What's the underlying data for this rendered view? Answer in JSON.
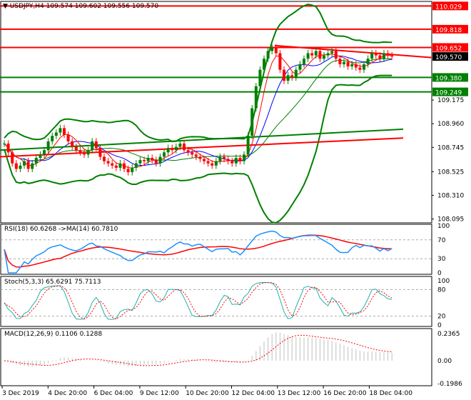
{
  "chart_data": {
    "type": "candlestick",
    "symbol": "USDJPY,H4",
    "ohlc_header": "109.574 109.602 109.556 109.570",
    "current_price": "109.570",
    "price_ticks": [
      "109.175",
      "108.960",
      "108.745",
      "108.525",
      "108.310",
      "108.095"
    ],
    "ylim": [
      108.06,
      110.07
    ],
    "time_labels": [
      "3 Dec 2019",
      "4 Dec 20:00",
      "6 Dec 04:00",
      "9 Dec 12:00",
      "10 Dec 20:00",
      "12 Dec 04:00",
      "13 Dec 12:00",
      "16 Dec 20:00",
      "18 Dec 04:00"
    ],
    "closes": [
      108.78,
      108.7,
      108.6,
      108.55,
      108.58,
      108.62,
      108.55,
      108.6,
      108.65,
      108.68,
      108.72,
      108.8,
      108.85,
      108.88,
      108.92,
      108.86,
      108.8,
      108.75,
      108.72,
      108.7,
      108.68,
      108.72,
      108.8,
      108.74,
      108.66,
      108.62,
      108.6,
      108.58,
      108.56,
      108.6,
      108.55,
      108.52,
      108.56,
      108.6,
      108.63,
      108.62,
      108.65,
      108.63,
      108.6,
      108.66,
      108.7,
      108.74,
      108.72,
      108.75,
      108.78,
      108.72,
      108.7,
      108.68,
      108.66,
      108.64,
      108.62,
      108.6,
      108.58,
      108.62,
      108.66,
      108.64,
      108.62,
      108.6,
      108.65,
      108.62,
      108.68,
      108.85,
      109.1,
      109.3,
      109.45,
      109.55,
      109.62,
      109.65,
      109.6,
      109.45,
      109.35,
      109.4,
      109.38,
      109.45,
      109.5,
      109.55,
      109.6,
      109.58,
      109.62,
      109.55,
      109.58,
      109.6,
      109.62,
      109.55,
      109.5,
      109.52,
      109.48,
      109.5,
      109.47,
      109.45,
      109.5,
      109.55,
      109.6,
      109.58,
      109.55,
      109.6,
      109.58,
      109.57
    ],
    "horizontal_levels": [
      {
        "price": "110.029",
        "color": "#ff0000"
      },
      {
        "price": "109.818",
        "color": "#ff0000"
      },
      {
        "price": "109.652",
        "color": "#ff0000"
      },
      {
        "price": "109.380",
        "color": "#008000"
      },
      {
        "price": "109.249",
        "color": "#008000"
      }
    ],
    "colors": {
      "bull": "#008000",
      "bear": "#ff0000",
      "bollinger": "#008000",
      "ma_fast": "#ff0000",
      "ma_slow": "#0000ff",
      "rsi": "#1e90ff",
      "stoch_main": "#20b2aa",
      "signal": "#ff0000",
      "macd_hist": "#c0c0c0"
    },
    "rsi": {
      "label": "RSI(18) 60.6268  ->MA(14) 60.7810",
      "ticks": [
        "100",
        "70",
        "30",
        "0"
      ]
    },
    "stoch": {
      "label": "Stoch(5,3,3) 65.6291 75.7113",
      "ticks": [
        "100",
        "80",
        "20",
        "0"
      ]
    },
    "macd": {
      "label": "MACD(12,26,9) 0.1106 0.1288",
      "ticks": [
        "0.2365",
        "0.00",
        "-0.1986"
      ]
    }
  }
}
